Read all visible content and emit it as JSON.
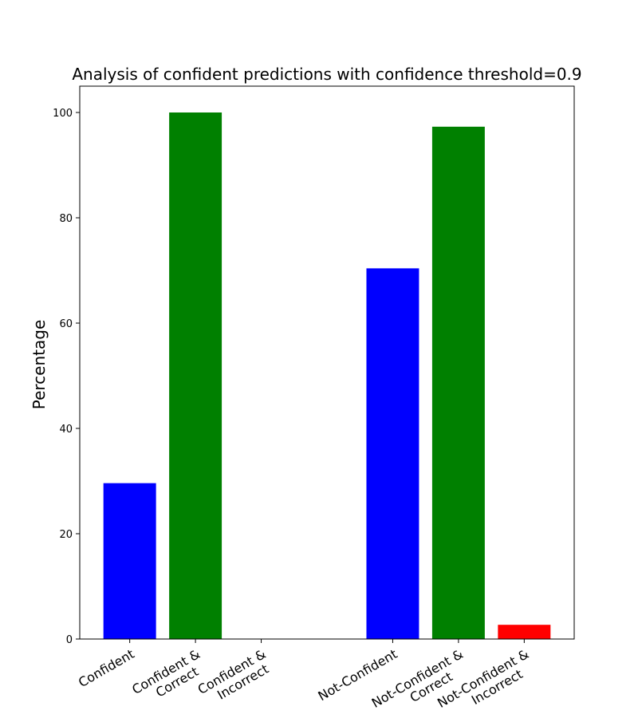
{
  "chart_data": {
    "type": "bar",
    "title": "Analysis of confident predictions with confidence threshold=0.9",
    "ylabel": "Percentage",
    "xlabel": "",
    "ylim": [
      0,
      105
    ],
    "yticks": [
      0,
      20,
      40,
      60,
      80,
      100
    ],
    "grid": false,
    "bars": [
      {
        "label": [
          "Confident"
        ],
        "x": 0,
        "value": 29.6,
        "color": "#0000ff"
      },
      {
        "label": [
          "Confident &",
          "Correct"
        ],
        "x": 1,
        "value": 100.0,
        "color": "#008000"
      },
      {
        "label": [
          "Confident &",
          "Incorrect"
        ],
        "x": 2,
        "value": 0.0,
        "color": "#ff0000"
      },
      {
        "label": [
          "Not-Confident"
        ],
        "x": 4,
        "value": 70.4,
        "color": "#0000ff"
      },
      {
        "label": [
          "Not-Confident &",
          "Correct"
        ],
        "x": 5,
        "value": 97.3,
        "color": "#008000"
      },
      {
        "label": [
          "Not-Confident &",
          "Incorrect"
        ],
        "x": 6,
        "value": 2.7,
        "color": "#ff0000"
      }
    ]
  }
}
